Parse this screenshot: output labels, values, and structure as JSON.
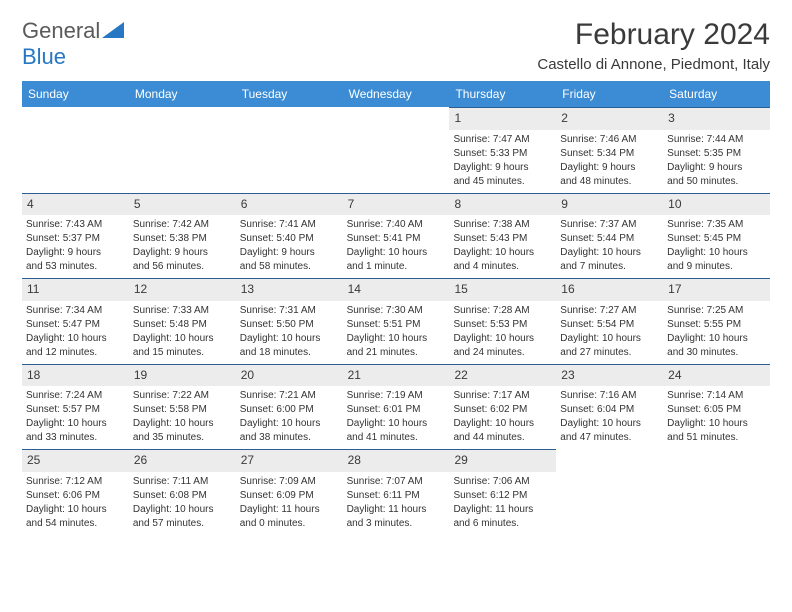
{
  "logo": {
    "general": "General",
    "blue": "Blue"
  },
  "title": "February 2024",
  "location": "Castello di Annone, Piedmont, Italy",
  "colors": {
    "header_bar": "#3b8cd4",
    "daynum_bg": "#ececec",
    "daynum_border_top": "#2b5f93",
    "logo_blue": "#2678c4",
    "logo_gray": "#5a5a5a",
    "text": "#333333"
  },
  "dow": [
    "Sunday",
    "Monday",
    "Tuesday",
    "Wednesday",
    "Thursday",
    "Friday",
    "Saturday"
  ],
  "weeks": [
    [
      {
        "empty": true
      },
      {
        "empty": true
      },
      {
        "empty": true
      },
      {
        "empty": true
      },
      {
        "day": "1",
        "sunrise": "Sunrise: 7:47 AM",
        "sunset": "Sunset: 5:33 PM",
        "daylight1": "Daylight: 9 hours",
        "daylight2": "and 45 minutes."
      },
      {
        "day": "2",
        "sunrise": "Sunrise: 7:46 AM",
        "sunset": "Sunset: 5:34 PM",
        "daylight1": "Daylight: 9 hours",
        "daylight2": "and 48 minutes."
      },
      {
        "day": "3",
        "sunrise": "Sunrise: 7:44 AM",
        "sunset": "Sunset: 5:35 PM",
        "daylight1": "Daylight: 9 hours",
        "daylight2": "and 50 minutes."
      }
    ],
    [
      {
        "day": "4",
        "sunrise": "Sunrise: 7:43 AM",
        "sunset": "Sunset: 5:37 PM",
        "daylight1": "Daylight: 9 hours",
        "daylight2": "and 53 minutes."
      },
      {
        "day": "5",
        "sunrise": "Sunrise: 7:42 AM",
        "sunset": "Sunset: 5:38 PM",
        "daylight1": "Daylight: 9 hours",
        "daylight2": "and 56 minutes."
      },
      {
        "day": "6",
        "sunrise": "Sunrise: 7:41 AM",
        "sunset": "Sunset: 5:40 PM",
        "daylight1": "Daylight: 9 hours",
        "daylight2": "and 58 minutes."
      },
      {
        "day": "7",
        "sunrise": "Sunrise: 7:40 AM",
        "sunset": "Sunset: 5:41 PM",
        "daylight1": "Daylight: 10 hours",
        "daylight2": "and 1 minute."
      },
      {
        "day": "8",
        "sunrise": "Sunrise: 7:38 AM",
        "sunset": "Sunset: 5:43 PM",
        "daylight1": "Daylight: 10 hours",
        "daylight2": "and 4 minutes."
      },
      {
        "day": "9",
        "sunrise": "Sunrise: 7:37 AM",
        "sunset": "Sunset: 5:44 PM",
        "daylight1": "Daylight: 10 hours",
        "daylight2": "and 7 minutes."
      },
      {
        "day": "10",
        "sunrise": "Sunrise: 7:35 AM",
        "sunset": "Sunset: 5:45 PM",
        "daylight1": "Daylight: 10 hours",
        "daylight2": "and 9 minutes."
      }
    ],
    [
      {
        "day": "11",
        "sunrise": "Sunrise: 7:34 AM",
        "sunset": "Sunset: 5:47 PM",
        "daylight1": "Daylight: 10 hours",
        "daylight2": "and 12 minutes."
      },
      {
        "day": "12",
        "sunrise": "Sunrise: 7:33 AM",
        "sunset": "Sunset: 5:48 PM",
        "daylight1": "Daylight: 10 hours",
        "daylight2": "and 15 minutes."
      },
      {
        "day": "13",
        "sunrise": "Sunrise: 7:31 AM",
        "sunset": "Sunset: 5:50 PM",
        "daylight1": "Daylight: 10 hours",
        "daylight2": "and 18 minutes."
      },
      {
        "day": "14",
        "sunrise": "Sunrise: 7:30 AM",
        "sunset": "Sunset: 5:51 PM",
        "daylight1": "Daylight: 10 hours",
        "daylight2": "and 21 minutes."
      },
      {
        "day": "15",
        "sunrise": "Sunrise: 7:28 AM",
        "sunset": "Sunset: 5:53 PM",
        "daylight1": "Daylight: 10 hours",
        "daylight2": "and 24 minutes."
      },
      {
        "day": "16",
        "sunrise": "Sunrise: 7:27 AM",
        "sunset": "Sunset: 5:54 PM",
        "daylight1": "Daylight: 10 hours",
        "daylight2": "and 27 minutes."
      },
      {
        "day": "17",
        "sunrise": "Sunrise: 7:25 AM",
        "sunset": "Sunset: 5:55 PM",
        "daylight1": "Daylight: 10 hours",
        "daylight2": "and 30 minutes."
      }
    ],
    [
      {
        "day": "18",
        "sunrise": "Sunrise: 7:24 AM",
        "sunset": "Sunset: 5:57 PM",
        "daylight1": "Daylight: 10 hours",
        "daylight2": "and 33 minutes."
      },
      {
        "day": "19",
        "sunrise": "Sunrise: 7:22 AM",
        "sunset": "Sunset: 5:58 PM",
        "daylight1": "Daylight: 10 hours",
        "daylight2": "and 35 minutes."
      },
      {
        "day": "20",
        "sunrise": "Sunrise: 7:21 AM",
        "sunset": "Sunset: 6:00 PM",
        "daylight1": "Daylight: 10 hours",
        "daylight2": "and 38 minutes."
      },
      {
        "day": "21",
        "sunrise": "Sunrise: 7:19 AM",
        "sunset": "Sunset: 6:01 PM",
        "daylight1": "Daylight: 10 hours",
        "daylight2": "and 41 minutes."
      },
      {
        "day": "22",
        "sunrise": "Sunrise: 7:17 AM",
        "sunset": "Sunset: 6:02 PM",
        "daylight1": "Daylight: 10 hours",
        "daylight2": "and 44 minutes."
      },
      {
        "day": "23",
        "sunrise": "Sunrise: 7:16 AM",
        "sunset": "Sunset: 6:04 PM",
        "daylight1": "Daylight: 10 hours",
        "daylight2": "and 47 minutes."
      },
      {
        "day": "24",
        "sunrise": "Sunrise: 7:14 AM",
        "sunset": "Sunset: 6:05 PM",
        "daylight1": "Daylight: 10 hours",
        "daylight2": "and 51 minutes."
      }
    ],
    [
      {
        "day": "25",
        "sunrise": "Sunrise: 7:12 AM",
        "sunset": "Sunset: 6:06 PM",
        "daylight1": "Daylight: 10 hours",
        "daylight2": "and 54 minutes."
      },
      {
        "day": "26",
        "sunrise": "Sunrise: 7:11 AM",
        "sunset": "Sunset: 6:08 PM",
        "daylight1": "Daylight: 10 hours",
        "daylight2": "and 57 minutes."
      },
      {
        "day": "27",
        "sunrise": "Sunrise: 7:09 AM",
        "sunset": "Sunset: 6:09 PM",
        "daylight1": "Daylight: 11 hours",
        "daylight2": "and 0 minutes."
      },
      {
        "day": "28",
        "sunrise": "Sunrise: 7:07 AM",
        "sunset": "Sunset: 6:11 PM",
        "daylight1": "Daylight: 11 hours",
        "daylight2": "and 3 minutes."
      },
      {
        "day": "29",
        "sunrise": "Sunrise: 7:06 AM",
        "sunset": "Sunset: 6:12 PM",
        "daylight1": "Daylight: 11 hours",
        "daylight2": "and 6 minutes."
      },
      {
        "empty": true
      },
      {
        "empty": true
      }
    ]
  ]
}
